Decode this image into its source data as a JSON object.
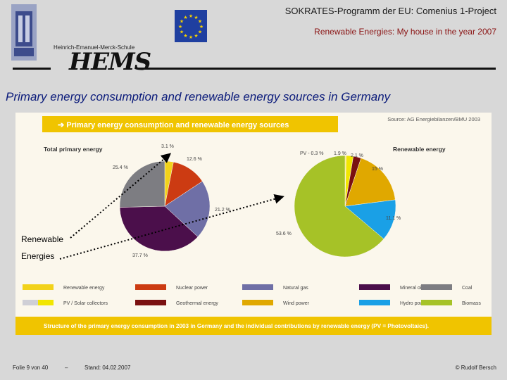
{
  "header": {
    "title": "SOKRATES-Programm der EU: Comenius 1-Project",
    "subtitle": "Renewable Energies: My house in the year 2007",
    "school": "Heinrich-Emanuel-Merck-Schule",
    "logo_text": "HEMS"
  },
  "slide_title": "Primary energy consumption and renewable energy sources in Germany",
  "panel": {
    "banner": "➔  Primary energy consumption and renewable energy sources",
    "source": "Source: AG Energiebilanzen/BMU 2003",
    "caption": "Structure of the primary energy consumption in 2003 in Germany and the individual contributions by renewable energy (PV = Photovoltaics)."
  },
  "annotation": {
    "line1": "Renewable",
    "line2": "Energies"
  },
  "footer": {
    "slide": "Folie 9 von 40",
    "dash": "–",
    "date": "Stand: 04.02.2007",
    "author": "© Rudolf Bersch"
  },
  "colors": {
    "accent_yellow": "#f0c400",
    "title_blue": "#0a1a7a",
    "subtitle_red": "#8a1313"
  },
  "chart_data": [
    {
      "type": "pie",
      "title": "Total primary energy",
      "slices": [
        {
          "name": "Renewable energy",
          "value": 3.1,
          "label": "3.1 %",
          "color": "#f2d21a"
        },
        {
          "name": "Nuclear power",
          "value": 12.6,
          "label": "12.6 %",
          "color": "#cc3b12"
        },
        {
          "name": "Natural gas",
          "value": 21.2,
          "label": "21.2 %",
          "color": "#6f6fa6"
        },
        {
          "name": "Mineral oil",
          "value": 37.7,
          "label": "37.7 %",
          "color": "#4b0f4b"
        },
        {
          "name": "Coal",
          "value": 25.4,
          "label": "25.4 %",
          "color": "#7d7d82"
        }
      ]
    },
    {
      "type": "pie",
      "title": "Renewable energy",
      "slices": [
        {
          "name": "PV / Solar collectors",
          "value": 0.3,
          "label": "PV - 0.3 %",
          "color": "#ffe66b"
        },
        {
          "name": "PV / Solar collectors",
          "value": 1.9,
          "label": "1.9 %",
          "color": "#f2e600"
        },
        {
          "name": "Geothermal energy",
          "value": 2.1,
          "label": "2.1 %",
          "color": "#7a1010"
        },
        {
          "name": "Wind power",
          "value": 15.0,
          "label": "15 %",
          "color": "#e0a800"
        },
        {
          "name": "Hydro power",
          "value": 11.1,
          "label": "11.1 %",
          "color": "#1aa0e6"
        },
        {
          "name": "Biomass",
          "value": 53.6,
          "label": "53.6 %",
          "color": "#a6c227"
        }
      ]
    }
  ],
  "legend": [
    {
      "label": "Renewable energy",
      "color": "#f2d21a",
      "color2": null
    },
    {
      "label": "Nuclear power",
      "color": "#cc3b12",
      "color2": null
    },
    {
      "label": "Natural gas",
      "color": "#6f6fa6",
      "color2": null
    },
    {
      "label": "Mineral oil",
      "color": "#4b0f4b",
      "color2": null
    },
    {
      "label": "Coal",
      "color": "#7d7d82",
      "color2": null
    },
    {
      "label": "PV / Solar collectors",
      "color": "#cfcfd6",
      "color2": "#f2e600"
    },
    {
      "label": "Geothermal energy",
      "color": "#7a1010",
      "color2": null
    },
    {
      "label": "Wind power",
      "color": "#e0a800",
      "color2": null
    },
    {
      "label": "Hydro power",
      "color": "#1aa0e6",
      "color2": null
    },
    {
      "label": "Biomass",
      "color": "#a6c227",
      "color2": null
    }
  ]
}
